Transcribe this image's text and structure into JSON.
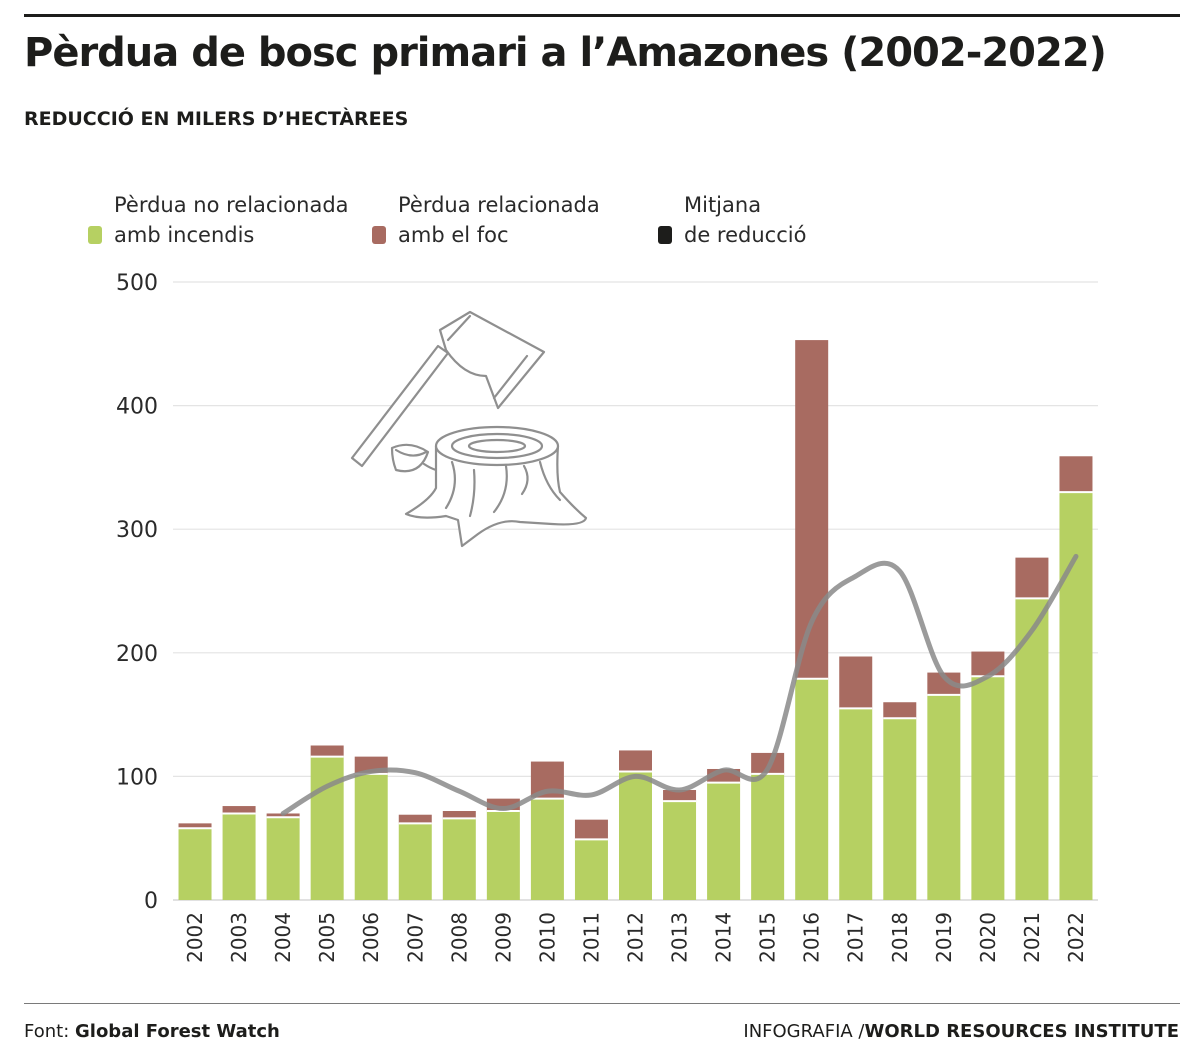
{
  "header": {
    "title": "Pèrdua de bosc primari a l’Amazones (2002-2022)",
    "subtitle": "REDUCCIÓ EN MILERS D’HECTÀREES"
  },
  "legend": [
    {
      "line1": "Pèrdua no relacionada",
      "line2": "amb incendis",
      "color": "#b6d062"
    },
    {
      "line1": "Pèrdua relacionada",
      "line2": "amb el foc",
      "color": "#a86b61"
    },
    {
      "line1": "Mitjana",
      "line2": "de reducció",
      "color": "#1d1d1b"
    }
  ],
  "chart_data": {
    "type": "bar",
    "stacked": true,
    "categories": [
      "2002",
      "2003",
      "2004",
      "2005",
      "2006",
      "2007",
      "2008",
      "2009",
      "2010",
      "2011",
      "2012",
      "2013",
      "2014",
      "2015",
      "2016",
      "2017",
      "2018",
      "2019",
      "2020",
      "2021",
      "2022"
    ],
    "series": [
      {
        "name": "Pèrdua no relacionada amb incendis",
        "color": "#b6d062",
        "values": [
          58,
          70,
          67,
          116,
          102,
          62,
          66,
          72,
          82,
          49,
          104,
          80,
          95,
          102,
          179,
          155,
          147,
          166,
          181,
          244,
          330
        ]
      },
      {
        "name": "Pèrdua relacionada amb el foc",
        "color": "#a86b61",
        "values": [
          4,
          6,
          3,
          9,
          14,
          7,
          6,
          10,
          30,
          16,
          17,
          9,
          11,
          17,
          274,
          42,
          13,
          18,
          20,
          33,
          29
        ]
      }
    ],
    "average_line": {
      "name": "Mitjana de reducció",
      "color": "#8a8a8a",
      "start_index": 2,
      "values": [
        70,
        92,
        104,
        103,
        88,
        74,
        88,
        85,
        100,
        89,
        105,
        106,
        225,
        262,
        266,
        181,
        181,
        218,
        278
      ]
    },
    "yticks": [
      0,
      100,
      200,
      300,
      400,
      500
    ],
    "ylim": [
      0,
      500
    ],
    "grid": true
  },
  "footer": {
    "source_label": "Font:",
    "source_name": "Global Forest Watch",
    "credit_label": "INFOGRAFIA /",
    "credit_name": "WORLD RESOURCES INSTITUTE"
  },
  "illustration": {
    "icon": "axe-and-tree-stump-icon"
  }
}
